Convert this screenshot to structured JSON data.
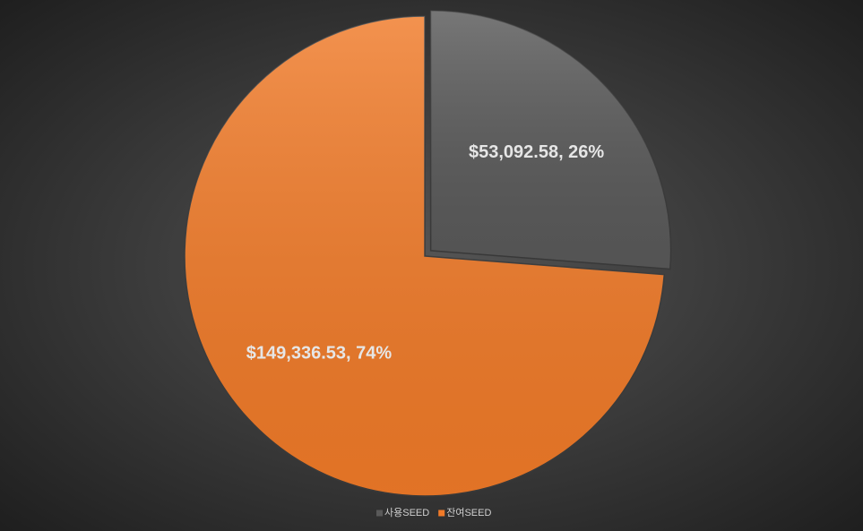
{
  "chart_data": {
    "type": "pie",
    "categories": [
      "사용SEED",
      "잔여SEED"
    ],
    "values": [
      53092.58,
      149336.53
    ],
    "value_labels": [
      "$53,092.58, 26%",
      "$149,336.53, 74%"
    ],
    "colors": [
      "#595959",
      "#f07a28"
    ],
    "legend": "bottom"
  }
}
